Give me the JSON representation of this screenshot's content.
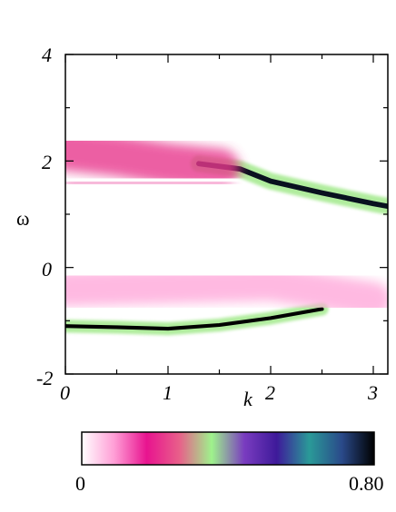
{
  "chart_data": {
    "type": "heatmap",
    "title": "",
    "xlabel": "k",
    "ylabel": "ω",
    "xlim": [
      0,
      3.14159
    ],
    "ylim": [
      -2,
      4
    ],
    "x_ticks": [
      "0",
      "1",
      "2",
      "3"
    ],
    "y_ticks": [
      "-2",
      "0",
      "2",
      "4"
    ],
    "colorbar": {
      "min_label": "0",
      "max_label": "0.80",
      "range": [
        0,
        0.8
      ],
      "colors": [
        "#ffffff",
        "#ff9ed6",
        "#e8138f",
        "#e85f8a",
        "#9ef28c",
        "#7a3cc0",
        "#3e1a9a",
        "#2a9a98",
        "#2a4a8a",
        "#000000"
      ]
    },
    "bands": [
      {
        "name": "lower-sharp",
        "points": [
          [
            0,
            -1.1
          ],
          [
            0.5,
            -1.12
          ],
          [
            1.0,
            -1.15
          ],
          [
            1.5,
            -1.08
          ],
          [
            2.0,
            -0.95
          ],
          [
            2.5,
            -0.78
          ]
        ],
        "width": 0.05,
        "intensity": 0.8
      },
      {
        "name": "upper-sharp",
        "points": [
          [
            1.3,
            1.95
          ],
          [
            1.7,
            1.85
          ],
          [
            2.0,
            1.62
          ],
          [
            2.5,
            1.4
          ],
          [
            3.0,
            1.2
          ],
          [
            3.14,
            1.15
          ]
        ],
        "width": 0.07,
        "intensity": 0.78
      },
      {
        "name": "upper-broad",
        "points": [
          [
            0,
            2.2
          ],
          [
            0.5,
            2.1
          ],
          [
            1.0,
            1.95
          ],
          [
            1.5,
            1.85
          ]
        ],
        "width": 0.35,
        "intensity": 0.22
      },
      {
        "name": "upper-edge",
        "points": [
          [
            0,
            1.6
          ],
          [
            1.0,
            1.6
          ],
          [
            1.6,
            1.58
          ]
        ],
        "width": 0.05,
        "intensity": 0.2
      },
      {
        "name": "lower-continuum",
        "points": [
          [
            0,
            -0.4
          ],
          [
            1.0,
            -0.35
          ],
          [
            2.0,
            -0.3
          ],
          [
            3.0,
            -0.6
          ]
        ],
        "width": 0.3,
        "intensity": 0.08
      }
    ]
  }
}
